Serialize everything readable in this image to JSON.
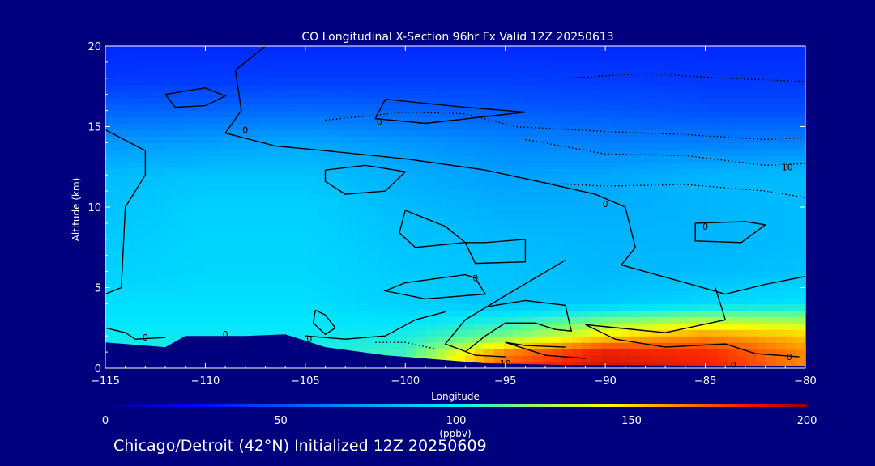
{
  "chart_data": {
    "type": "heatmap",
    "title": "CO Longitudinal X-Section 96hr  Fx Valid 12Z 20250613",
    "xlabel": "Longitude",
    "ylabel": "Altitude (km)",
    "xlim": [
      -115,
      -80
    ],
    "ylim": [
      0,
      20
    ],
    "x_ticks": [
      -115,
      -110,
      -105,
      -100,
      -95,
      -90,
      -85,
      -80
    ],
    "x_tick_labels": [
      "−115",
      "−110",
      "−105",
      "−100",
      "−95",
      "−90",
      "−85",
      "−80"
    ],
    "y_ticks": [
      0,
      5,
      10,
      15,
      20
    ],
    "y_tick_labels": [
      "0",
      "5",
      "10",
      "15",
      "20"
    ],
    "colorbar": {
      "min": 0,
      "max": 200,
      "ticks": [
        0,
        50,
        100,
        150,
        200
      ],
      "tick_labels": [
        "0",
        "50",
        "100",
        "150",
        "200"
      ],
      "units": "(ppbv)"
    },
    "field_rows": [
      {
        "alt": 20,
        "values": [
          38,
          38,
          38,
          38,
          38,
          38,
          38,
          38
        ]
      },
      {
        "alt": 18,
        "values": [
          42,
          43,
          44,
          44,
          44,
          43,
          42,
          42
        ]
      },
      {
        "alt": 16,
        "values": [
          55,
          56,
          57,
          55,
          53,
          52,
          50,
          50
        ]
      },
      {
        "alt": 14,
        "values": [
          68,
          70,
          72,
          68,
          64,
          62,
          62,
          63
        ]
      },
      {
        "alt": 12,
        "values": [
          78,
          80,
          80,
          74,
          70,
          72,
          76,
          78
        ]
      },
      {
        "alt": 10,
        "values": [
          80,
          84,
          84,
          78,
          74,
          74,
          76,
          78
        ]
      },
      {
        "alt": 8,
        "values": [
          82,
          85,
          85,
          80,
          78,
          76,
          76,
          78
        ]
      },
      {
        "alt": 6,
        "values": [
          84,
          86,
          86,
          82,
          80,
          77,
          78,
          80
        ]
      },
      {
        "alt": 4,
        "values": [
          88,
          88,
          88,
          84,
          80,
          82,
          86,
          90
        ]
      },
      {
        "alt": 2,
        "values": [
          92,
          92,
          92,
          94,
          110,
          135,
          150,
          140
        ]
      },
      {
        "alt": 1,
        "values": [
          95,
          95,
          95,
          100,
          150,
          175,
          170,
          150
        ]
      },
      {
        "alt": 0,
        "values": [
          95,
          95,
          95,
          105,
          165,
          185,
          175,
          150
        ]
      }
    ],
    "terrain": [
      {
        "lon": -115,
        "alt": 1.6
      },
      {
        "lon": -112,
        "alt": 1.3
      },
      {
        "lon": -111,
        "alt": 2.0
      },
      {
        "lon": -108,
        "alt": 2.0
      },
      {
        "lon": -106,
        "alt": 2.1
      },
      {
        "lon": -104,
        "alt": 1.3
      },
      {
        "lon": -101,
        "alt": 0.8
      },
      {
        "lon": -98,
        "alt": 0.5
      },
      {
        "lon": -96,
        "alt": 0.3
      },
      {
        "lon": -92,
        "alt": 0.2
      },
      {
        "lon": -85,
        "alt": 0.15
      },
      {
        "lon": -80,
        "alt": 0.1
      }
    ],
    "contour_labels": [
      {
        "text": "0",
        "lon": -113.0,
        "alt": 1.9
      },
      {
        "text": "0",
        "lon": -109.0,
        "alt": 2.1
      },
      {
        "text": "0",
        "lon": -104.8,
        "alt": 1.8
      },
      {
        "text": "0",
        "lon": -108.0,
        "alt": 14.8
      },
      {
        "text": "0",
        "lon": -101.3,
        "alt": 15.3
      },
      {
        "text": "0",
        "lon": -90.0,
        "alt": 10.2
      },
      {
        "text": "0",
        "lon": -85.0,
        "alt": 8.8
      },
      {
        "text": "0",
        "lon": -96.5,
        "alt": 5.6
      },
      {
        "text": "0",
        "lon": -80.8,
        "alt": 0.7
      },
      {
        "text": "0",
        "lon": -83.6,
        "alt": 0.2
      },
      {
        "text": "10",
        "lon": -95.0,
        "alt": 0.3
      },
      {
        "text": "10",
        "lon": -80.9,
        "alt": 12.5
      }
    ],
    "footer": "Chicago/Detroit (42°N) Initialized 12Z 20250609"
  }
}
